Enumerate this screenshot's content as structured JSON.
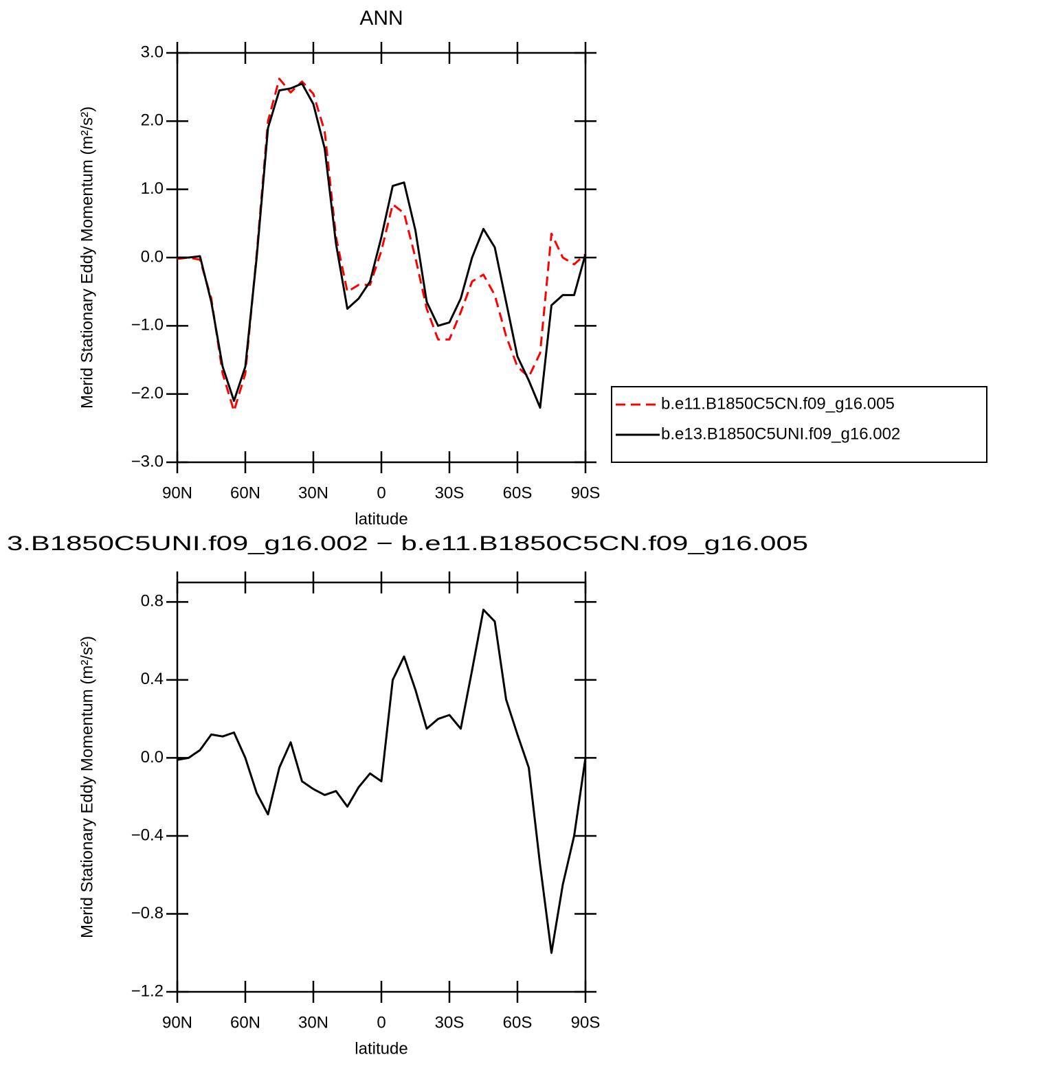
{
  "chart_data": [
    {
      "type": "line",
      "title": "ANN",
      "xlabel": "latitude",
      "ylabel": "Merid Stationary Eddy Momentum (m²/s²)",
      "x": [
        90,
        85,
        80,
        75,
        70,
        65,
        60,
        55,
        50,
        45,
        40,
        35,
        30,
        25,
        20,
        15,
        10,
        5,
        0,
        -5,
        -10,
        -15,
        -20,
        -25,
        -30,
        -35,
        -40,
        -45,
        -50,
        -55,
        -60,
        -65,
        -70,
        -75,
        -80,
        -85,
        -90
      ],
      "series": [
        {
          "name": "b.e11.B1850C5CN.f09_g16.005",
          "color": "#ff0000",
          "linestyle": "dashed",
          "values": [
            -0.02,
            0.0,
            -0.03,
            -0.6,
            -1.7,
            -2.25,
            -1.7,
            0.05,
            2.0,
            2.62,
            2.42,
            2.58,
            2.4,
            1.85,
            0.3,
            -0.5,
            -0.4,
            -0.4,
            0.1,
            0.78,
            0.65,
            0.0,
            -0.75,
            -1.2,
            -1.2,
            -0.8,
            -0.35,
            -0.25,
            -0.55,
            -1.15,
            -1.6,
            -1.75,
            -1.4,
            0.35,
            0.0,
            -0.1,
            0.05
          ]
        },
        {
          "name": "b.e13.B1850C5UNI.f09_g16.002",
          "color": "#000000",
          "linestyle": "solid",
          "values": [
            0.0,
            0.0,
            0.02,
            -0.65,
            -1.6,
            -2.1,
            -1.6,
            0.0,
            1.9,
            2.45,
            2.48,
            2.55,
            2.25,
            1.6,
            0.2,
            -0.75,
            -0.6,
            -0.35,
            0.3,
            1.05,
            1.1,
            0.4,
            -0.65,
            -1.0,
            -0.95,
            -0.6,
            0.0,
            0.42,
            0.15,
            -0.65,
            -1.45,
            -1.8,
            -2.2,
            -0.7,
            -0.55,
            -0.55,
            0.05
          ]
        }
      ],
      "xlim": [
        90,
        -90
      ],
      "ylim": [
        -3.0,
        3.0
      ],
      "xticks": [
        {
          "value": 90,
          "label": "90N"
        },
        {
          "value": 60,
          "label": "60N"
        },
        {
          "value": 30,
          "label": "30N"
        },
        0,
        {
          "value": -30,
          "label": "30S"
        },
        {
          "value": -60,
          "label": "60S"
        },
        {
          "value": -90,
          "label": "90S"
        }
      ],
      "yticks": [
        {
          "value": -3.0,
          "label": "−3.0"
        },
        {
          "value": -2.0,
          "label": "−2.0"
        },
        {
          "value": -1.0,
          "label": "−1.0"
        },
        {
          "value": 0.0,
          "label": "0.0"
        },
        {
          "value": 1.0,
          "label": "1.0"
        },
        {
          "value": 2.0,
          "label": "2.0"
        },
        {
          "value": 3.0,
          "label": "3.0"
        }
      ],
      "legend": "outside-right"
    },
    {
      "type": "line",
      "title": "3.B1850C5UNI.f09_g16.002 − b.e11.B1850C5CN.f09_g16.005",
      "xlabel": "latitude",
      "ylabel": "Merid Stationary Eddy Momentum (m²/s²)",
      "x": [
        90,
        85,
        80,
        75,
        70,
        65,
        60,
        55,
        50,
        45,
        40,
        35,
        30,
        25,
        20,
        15,
        10,
        5,
        0,
        -5,
        -10,
        -15,
        -20,
        -25,
        -30,
        -35,
        -40,
        -45,
        -50,
        -55,
        -60,
        -65,
        -70,
        -75,
        -80,
        -85,
        -90
      ],
      "series": [
        {
          "color": "#000000",
          "linestyle": "solid",
          "values": [
            -0.01,
            0.0,
            0.04,
            0.12,
            0.11,
            0.13,
            0.0,
            -0.18,
            -0.29,
            -0.05,
            0.08,
            -0.12,
            -0.16,
            -0.19,
            -0.17,
            -0.25,
            -0.15,
            -0.08,
            -0.12,
            0.4,
            0.52,
            0.35,
            0.15,
            0.2,
            0.22,
            0.15,
            0.45,
            0.76,
            0.7,
            0.3,
            0.12,
            -0.05,
            -0.55,
            -1.0,
            -0.65,
            -0.4,
            0.0
          ]
        }
      ],
      "xlim": [
        90,
        -90
      ],
      "ylim": [
        -1.2,
        0.9
      ],
      "xticks": [
        {
          "value": 90,
          "label": "90N"
        },
        {
          "value": 60,
          "label": "60N"
        },
        {
          "value": 30,
          "label": "30N"
        },
        0,
        {
          "value": -30,
          "label": "30S"
        },
        {
          "value": -60,
          "label": "60S"
        },
        {
          "value": -90,
          "label": "90S"
        }
      ],
      "yticks": [
        {
          "value": -1.2,
          "label": "−1.2"
        },
        {
          "value": -0.8,
          "label": "−0.8"
        },
        {
          "value": -0.4,
          "label": "−0.4"
        },
        {
          "value": 0.0,
          "label": "0.0"
        },
        0.4,
        0.8
      ]
    }
  ]
}
